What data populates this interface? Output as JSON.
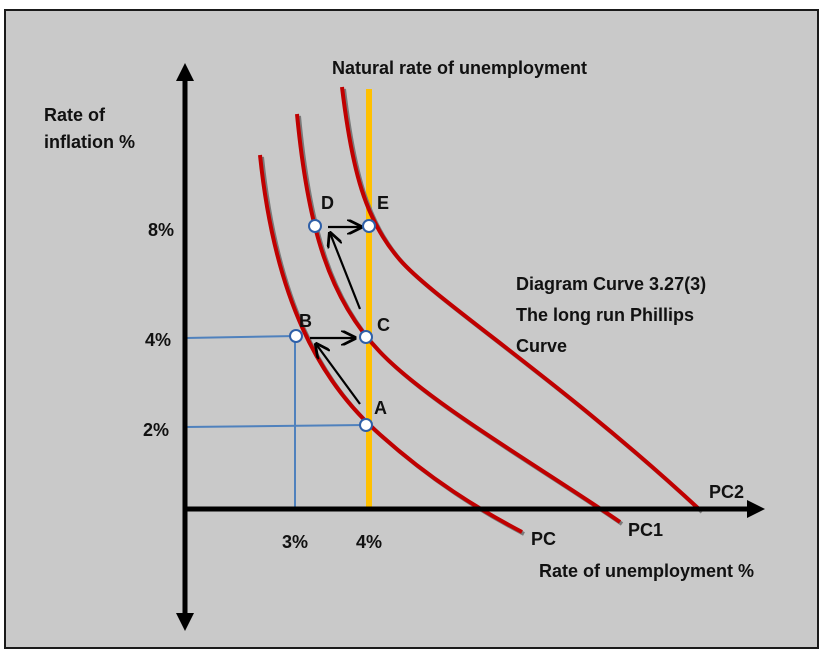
{
  "title": "Natural rate of unemployment",
  "diagram_caption": [
    "Diagram Curve 3.27(3)",
    "The long run Phillips",
    "Curve"
  ],
  "y_axis_label": [
    "Rate of",
    "inflation %"
  ],
  "x_axis_label": "Rate of unemployment %",
  "y_ticks": [
    "8%",
    "4%",
    "2%"
  ],
  "x_ticks": [
    "3%",
    "4%"
  ],
  "curves": [
    "PC",
    "PC1",
    "PC2"
  ],
  "points": [
    "A",
    "B",
    "C",
    "D",
    "E"
  ],
  "colors": {
    "background": "#c9c9c9",
    "curve": "#c00000",
    "curve_shadow": "#7a7a7a",
    "natural_rate_line": "#ffc000",
    "guide_lines": "#4f81bd",
    "axes": "#000000",
    "point_fill": "#ffffff",
    "point_stroke": "#2e5fa8"
  }
}
